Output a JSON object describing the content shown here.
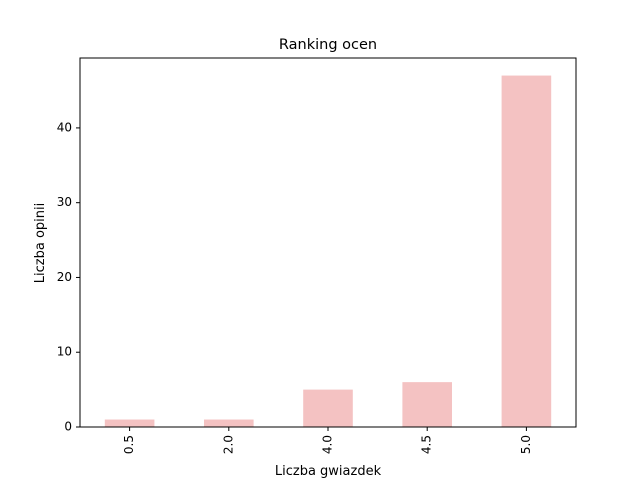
{
  "chart_data": {
    "type": "bar",
    "title": "Ranking ocen",
    "xlabel": "Liczba gwiazdek",
    "ylabel": "Liczba opinii",
    "categories": [
      "0.5",
      "2.0",
      "4.0",
      "4.5",
      "5.0"
    ],
    "values": [
      1,
      1,
      5,
      6,
      47
    ],
    "ylim": [
      0,
      49.35
    ],
    "yticks": [
      "0",
      "10",
      "20",
      "30",
      "40"
    ],
    "bar_color": "#f4c2c2",
    "grid": false,
    "legend": "none"
  }
}
